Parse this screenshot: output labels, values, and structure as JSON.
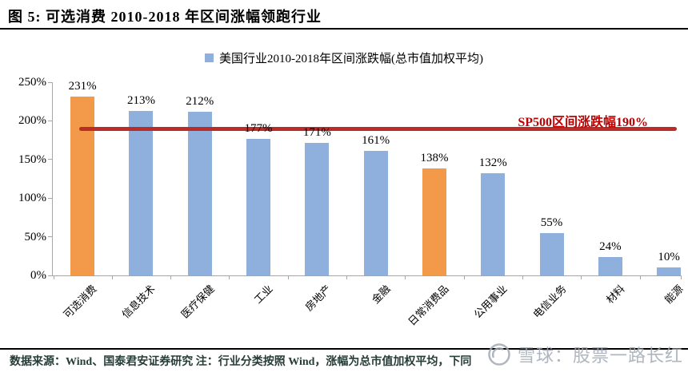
{
  "figure": {
    "title": "图 5: 可选消费 2010-2018 年区间涨幅领跑行业",
    "source_note": "数据来源：Wind、国泰君安证券研究  注：行业分类按照 Wind，涨幅为总市值加权平均，下同",
    "watermark_text": "雪球：股票一路长红"
  },
  "chart_data": {
    "type": "bar",
    "legend": "美国行业2010-2018年区间涨跌幅(总市值加权平均)",
    "legend_position": "top",
    "categories": [
      "可选消费",
      "信息技术",
      "医疗保健",
      "工业",
      "房地产",
      "金融",
      "日常消费品",
      "公用事业",
      "电信业务",
      "材料",
      "能源"
    ],
    "values": [
      231,
      213,
      212,
      177,
      171,
      161,
      138,
      132,
      55,
      24,
      10
    ],
    "value_labels": [
      "231%",
      "213%",
      "212%",
      "177%",
      "171%",
      "161%",
      "138%",
      "132%",
      "55%",
      "24%",
      "10%"
    ],
    "unit": "%",
    "ylim": [
      0,
      250
    ],
    "ytick_values": [
      0,
      50,
      100,
      150,
      200,
      250
    ],
    "ytick_labels": [
      "0%",
      "50%",
      "100%",
      "150%",
      "200%",
      "250%"
    ],
    "grid": false,
    "bar_color": "#8FB0DC",
    "highlight_color": "#F2994A",
    "highlight_indices": [
      0,
      6
    ],
    "reference_line": {
      "value": 190,
      "label": "SP500区间涨跌幅190%",
      "color": "#B92C28",
      "label_color": "#C00000"
    }
  }
}
